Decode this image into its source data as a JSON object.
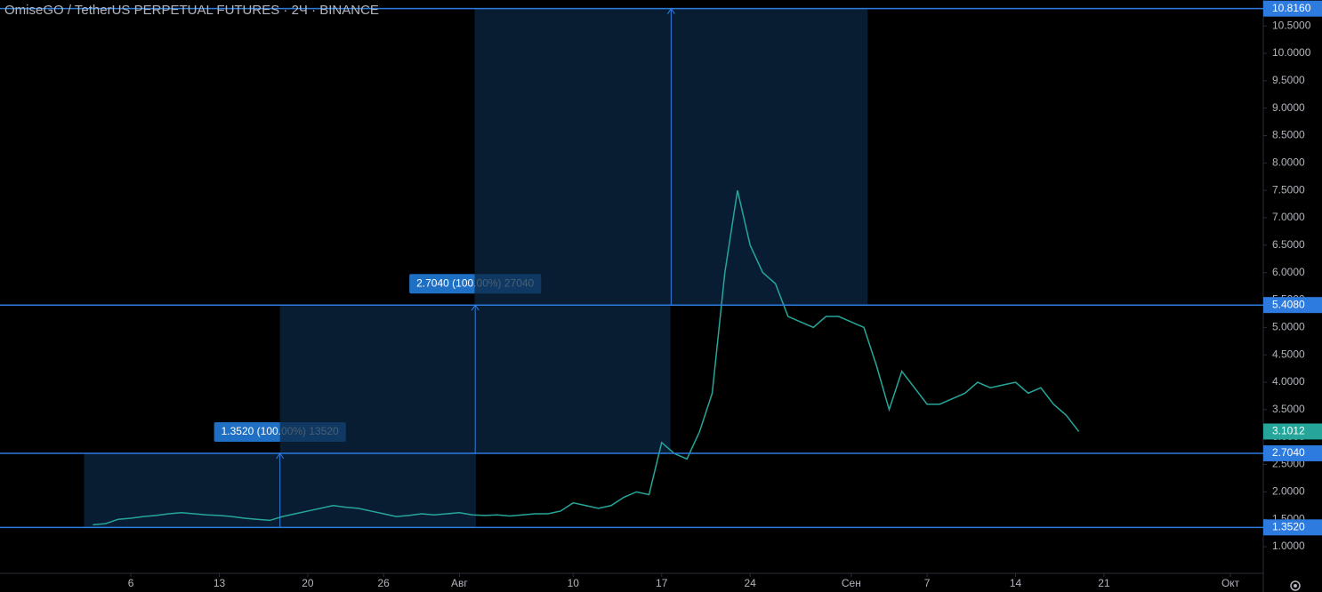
{
  "chart_data": {
    "type": "line",
    "title": "OmiseGO / TetherUS PERPETUAL FUTURES · 2Ч · BINANCE",
    "xlim": [
      -5.35,
      94.6
    ],
    "ylim": [
      0.514,
      10.973
    ],
    "grid": false,
    "xticks": [
      {
        "value": 5,
        "label": "6"
      },
      {
        "value": 12,
        "label": "13"
      },
      {
        "value": 19,
        "label": "20"
      },
      {
        "value": 25,
        "label": "26"
      },
      {
        "value": 31,
        "label": "Авг"
      },
      {
        "value": 40,
        "label": "10"
      },
      {
        "value": 47,
        "label": "17"
      },
      {
        "value": 54,
        "label": "24"
      },
      {
        "value": 62,
        "label": "Сен"
      },
      {
        "value": 68,
        "label": "7"
      },
      {
        "value": 75,
        "label": "14"
      },
      {
        "value": 82,
        "label": "21"
      },
      {
        "value": 92,
        "label": "Окт"
      }
    ],
    "yticks": [
      {
        "value": 1.0,
        "label": "1.0000"
      },
      {
        "value": 1.5,
        "label": "1.5000"
      },
      {
        "value": 2.0,
        "label": "2.0000"
      },
      {
        "value": 2.5,
        "label": "2.5000"
      },
      {
        "value": 3.0,
        "label": "3.0000"
      },
      {
        "value": 3.5,
        "label": "3.5000"
      },
      {
        "value": 4.0,
        "label": "4.0000"
      },
      {
        "value": 4.5,
        "label": "4.5000"
      },
      {
        "value": 5.0,
        "label": "5.0000"
      },
      {
        "value": 5.5,
        "label": "5.5000"
      },
      {
        "value": 6.0,
        "label": "6.0000"
      },
      {
        "value": 6.5,
        "label": "6.5000"
      },
      {
        "value": 7.0,
        "label": "7.0000"
      },
      {
        "value": 7.5,
        "label": "7.5000"
      },
      {
        "value": 8.0,
        "label": "8.0000"
      },
      {
        "value": 8.5,
        "label": "8.5000"
      },
      {
        "value": 9.0,
        "label": "9.0000"
      },
      {
        "value": 9.5,
        "label": "9.5000"
      },
      {
        "value": 10.0,
        "label": "10.0000"
      },
      {
        "value": 10.5,
        "label": "10.5000"
      }
    ],
    "series": [
      {
        "color": "#26a69a",
        "x": [
          2,
          3,
          4,
          5,
          6,
          7,
          8,
          9,
          10,
          11,
          12,
          13,
          14,
          15,
          16,
          17,
          18,
          19,
          20,
          21,
          22,
          23,
          24,
          25,
          26,
          27,
          28,
          29,
          30,
          31,
          32,
          33,
          34,
          35,
          36,
          37,
          38,
          39,
          40,
          41,
          42,
          43,
          44,
          45,
          46,
          47,
          48,
          49,
          50,
          51,
          52,
          53,
          54,
          55,
          56,
          57,
          58,
          59,
          60,
          61,
          62,
          63,
          64,
          65,
          66,
          67,
          68,
          69,
          70,
          71,
          72,
          73,
          74,
          75,
          76,
          77,
          78,
          79,
          80
        ],
        "values": [
          1.4,
          1.42,
          1.5,
          1.52,
          1.55,
          1.57,
          1.6,
          1.62,
          1.6,
          1.58,
          1.57,
          1.55,
          1.52,
          1.5,
          1.48,
          1.55,
          1.6,
          1.65,
          1.7,
          1.75,
          1.72,
          1.7,
          1.65,
          1.6,
          1.55,
          1.57,
          1.6,
          1.58,
          1.6,
          1.62,
          1.58,
          1.57,
          1.58,
          1.56,
          1.58,
          1.6,
          1.6,
          1.65,
          1.8,
          1.75,
          1.7,
          1.75,
          1.9,
          2.0,
          1.95,
          2.9,
          2.7,
          2.6,
          3.1,
          3.8,
          6.0,
          7.5,
          6.5,
          6.0,
          5.8,
          5.2,
          5.1,
          5.0,
          5.2,
          5.2,
          5.1,
          5.0,
          4.3,
          3.5,
          4.2,
          3.9,
          3.6,
          3.6,
          3.7,
          3.8,
          4.0,
          3.9,
          3.95,
          4.0,
          3.8,
          3.9,
          3.6,
          3.4,
          3.1012
        ]
      }
    ],
    "last_price": {
      "value": 3.1012,
      "label": "3.1012",
      "color": "#26a69a"
    },
    "levels": [
      {
        "value": 10.816,
        "label": "10.8160"
      },
      {
        "value": 5.408,
        "label": "5.4080"
      },
      {
        "value": 2.704,
        "label": "2.7040"
      },
      {
        "value": 1.352,
        "label": "1.3520"
      }
    ],
    "level_color": "#2e7be0",
    "measurements": [
      {
        "label": "1.3520 (100.00%) 13520",
        "from": 1.352,
        "to": 2.704,
        "start": 1.3,
        "end": 32.3
      },
      {
        "label": "2.7040 (100.00%) 27040",
        "from": 2.704,
        "to": 5.408,
        "start": 16.8,
        "end": 47.7
      },
      {
        "label": "5.4080 (100.00%) 54080",
        "from": 5.408,
        "to": 10.816,
        "start": 32.2,
        "end": 63.3
      }
    ]
  }
}
